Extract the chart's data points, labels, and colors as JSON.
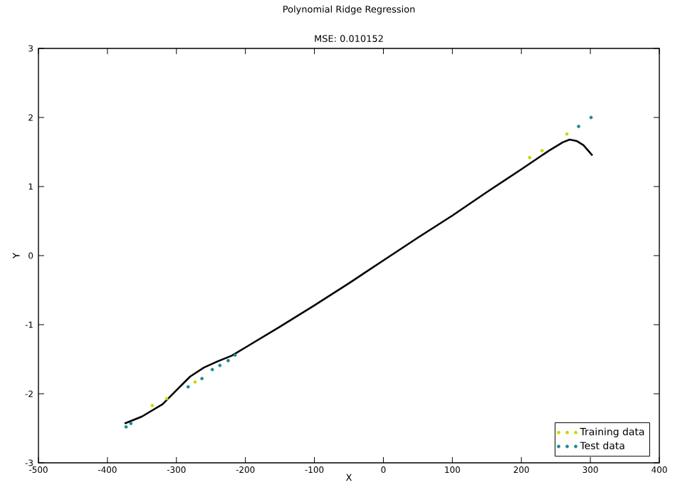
{
  "chart_data": {
    "type": "scatter",
    "title": "Polynomial Ridge Regression",
    "subtitle": "MSE: 0.010152",
    "xlabel": "X",
    "ylabel": "Y",
    "xlim": [
      -500,
      400
    ],
    "ylim": [
      -3,
      3
    ],
    "xticks": [
      -500,
      -400,
      -300,
      -200,
      -100,
      0,
      100,
      200,
      300,
      400
    ],
    "yticks": [
      -3,
      -2,
      -1,
      0,
      1,
      2,
      3
    ],
    "legend": "bottom right",
    "series": [
      {
        "name": "Training data",
        "marker": "circle",
        "color": "#c8d800",
        "x": [
          -335,
          -314,
          -273,
          212,
          230,
          266
        ],
        "values": [
          -2.17,
          -2.07,
          -1.83,
          1.42,
          1.52,
          1.76
        ]
      },
      {
        "name": "Test data",
        "marker": "circle",
        "color": "#1a8a8a",
        "x": [
          -373,
          -366,
          -283,
          -263,
          -248,
          -237,
          -225,
          -215,
          283,
          301
        ],
        "values": [
          -2.48,
          -2.43,
          -1.9,
          -1.78,
          -1.65,
          -1.59,
          -1.52,
          -1.44,
          1.87,
          2.0
        ]
      },
      {
        "type": "line",
        "marker": "none",
        "color": "#000000",
        "x": [
          -375,
          -350,
          -320,
          -300,
          -280,
          -260,
          -240,
          -220,
          -200,
          -150,
          -100,
          -50,
          0,
          50,
          100,
          150,
          200,
          240,
          260,
          270,
          280,
          290,
          303
        ],
        "values": [
          -2.43,
          -2.33,
          -2.15,
          -1.95,
          -1.75,
          -1.62,
          -1.53,
          -1.45,
          -1.33,
          -1.03,
          -0.72,
          -0.4,
          -0.07,
          0.26,
          0.58,
          0.92,
          1.25,
          1.52,
          1.64,
          1.68,
          1.66,
          1.6,
          1.45
        ]
      }
    ]
  }
}
